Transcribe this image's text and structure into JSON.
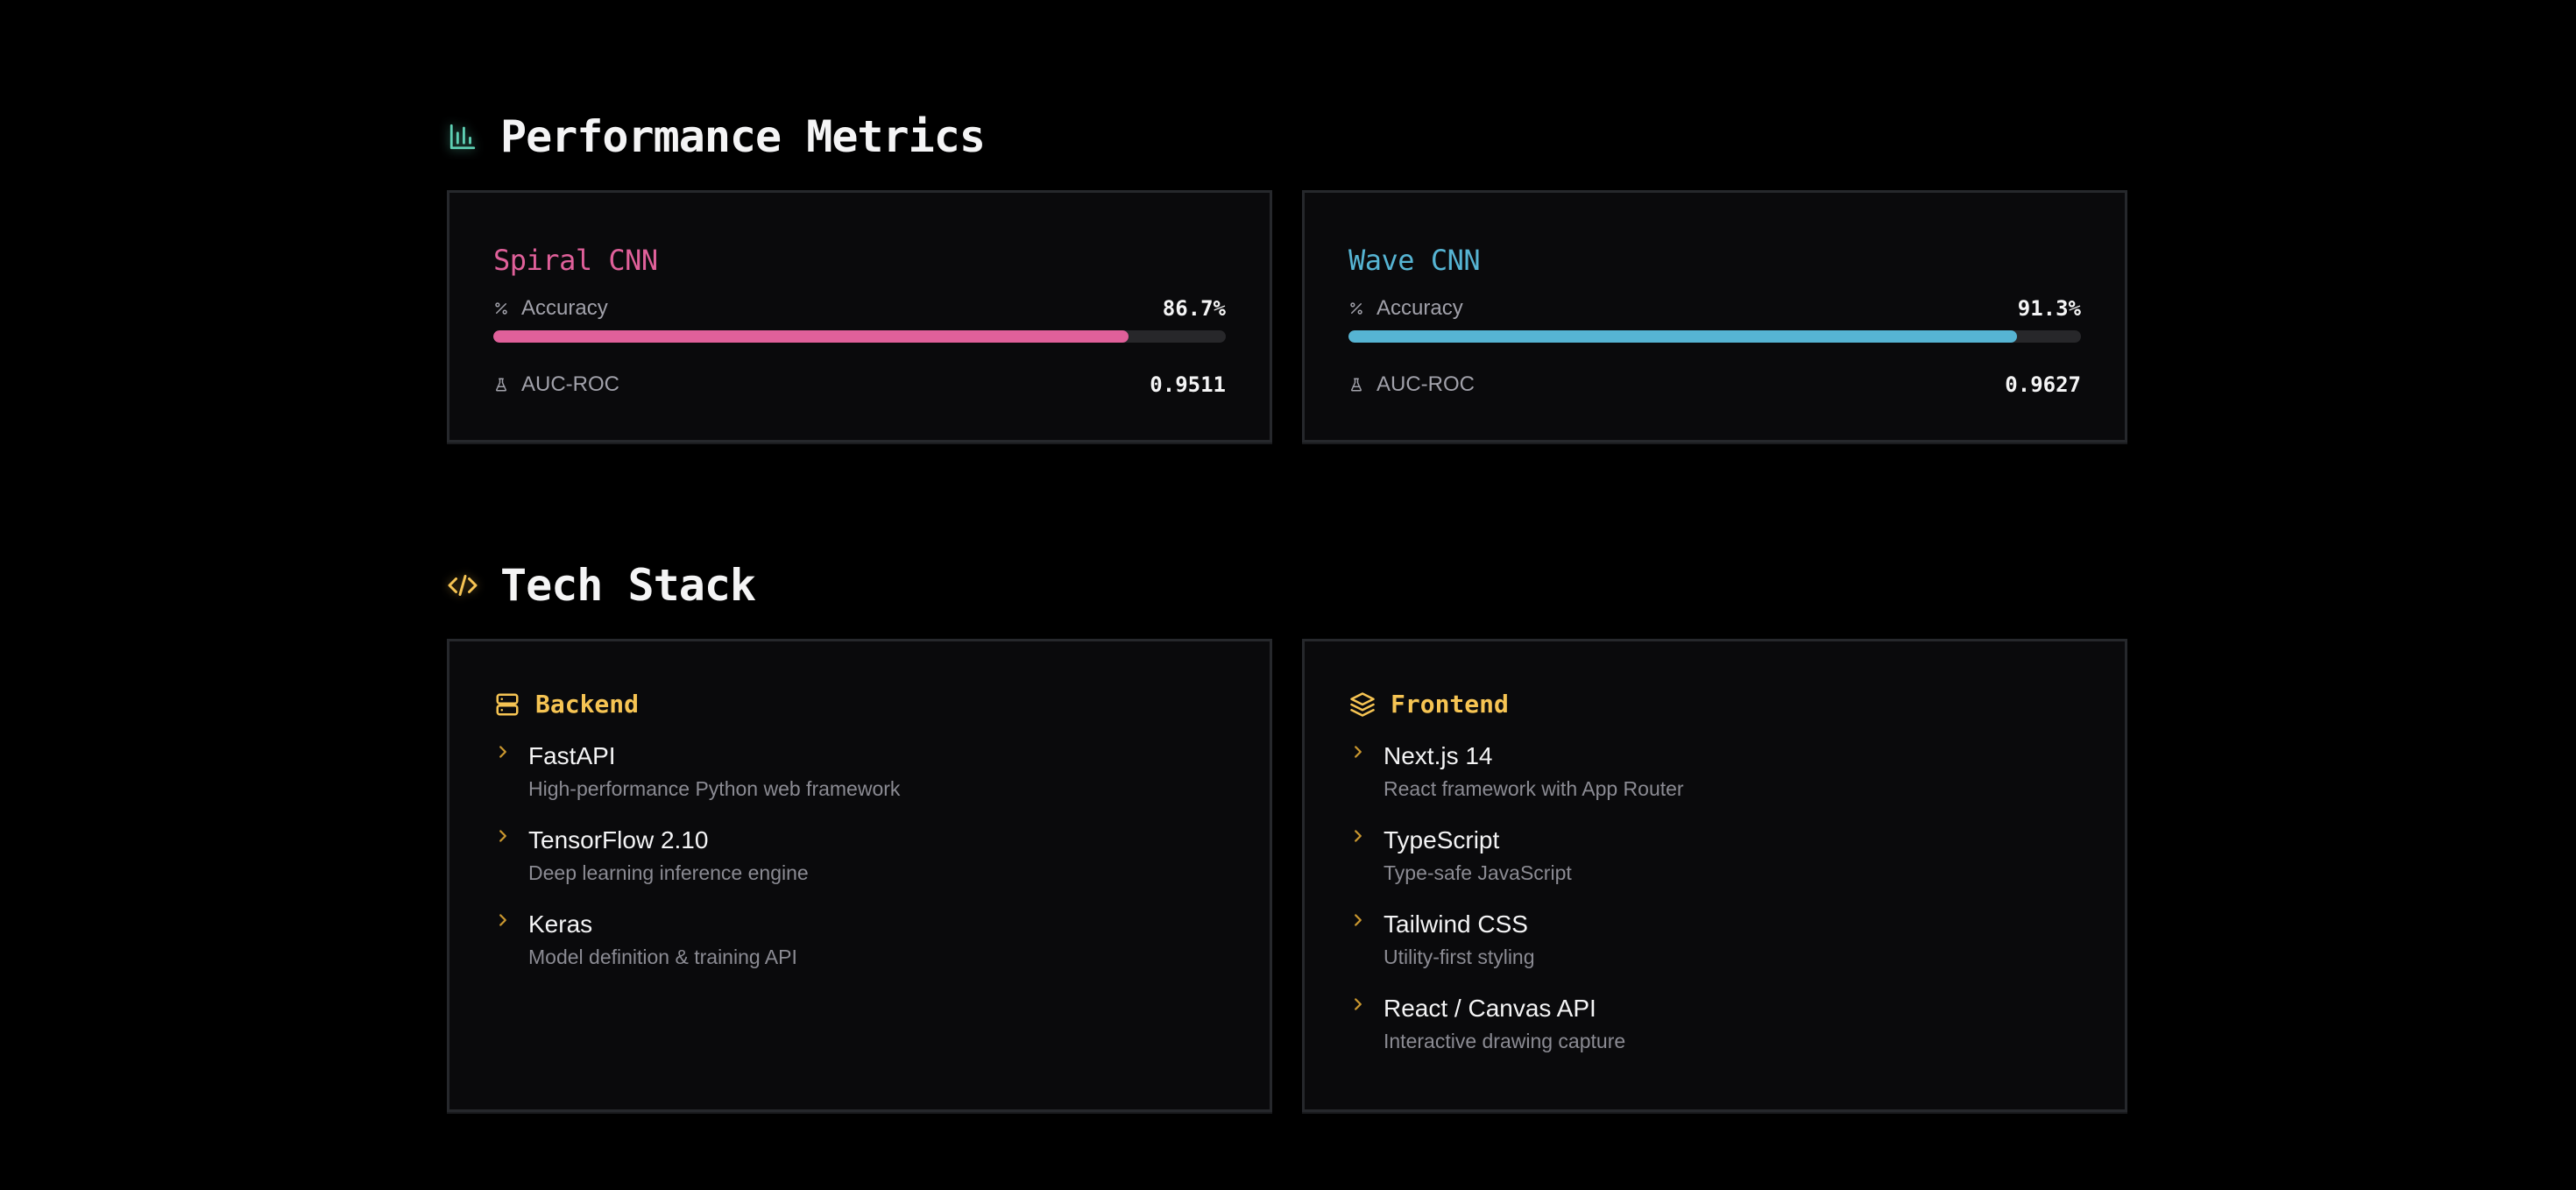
{
  "colors": {
    "spiral": "#e0609a",
    "wave": "#56b4d3",
    "metrics_icon": "#5fd0b4",
    "tech_accent": "#f6c453"
  },
  "performance": {
    "title": "Performance Metrics",
    "icon": "bar-chart-icon",
    "models": [
      {
        "name": "Spiral CNN",
        "accuracy_label": "Accuracy",
        "accuracy_icon": "percent-icon",
        "accuracy_value": "86.7%",
        "accuracy_fraction": 0.867,
        "auc_label": "AUC-ROC",
        "auc_icon": "flask-icon",
        "auc_value": "0.9511"
      },
      {
        "name": "Wave CNN",
        "accuracy_label": "Accuracy",
        "accuracy_icon": "percent-icon",
        "accuracy_value": "91.3%",
        "accuracy_fraction": 0.913,
        "auc_label": "AUC-ROC",
        "auc_icon": "flask-icon",
        "auc_value": "0.9627"
      }
    ]
  },
  "tech_stack": {
    "title": "Tech Stack",
    "icon": "code-icon",
    "backend": {
      "label": "Backend",
      "icon": "server-icon",
      "items": [
        {
          "name": "FastAPI",
          "desc": "High-performance Python web framework"
        },
        {
          "name": "TensorFlow 2.10",
          "desc": "Deep learning inference engine"
        },
        {
          "name": "Keras",
          "desc": "Model definition & training API"
        }
      ]
    },
    "frontend": {
      "label": "Frontend",
      "icon": "layers-icon",
      "items": [
        {
          "name": "Next.js 14",
          "desc": "React framework with App Router"
        },
        {
          "name": "TypeScript",
          "desc": "Type-safe JavaScript"
        },
        {
          "name": "Tailwind CSS",
          "desc": "Utility-first styling"
        },
        {
          "name": "React / Canvas API",
          "desc": "Interactive drawing capture"
        }
      ]
    }
  }
}
